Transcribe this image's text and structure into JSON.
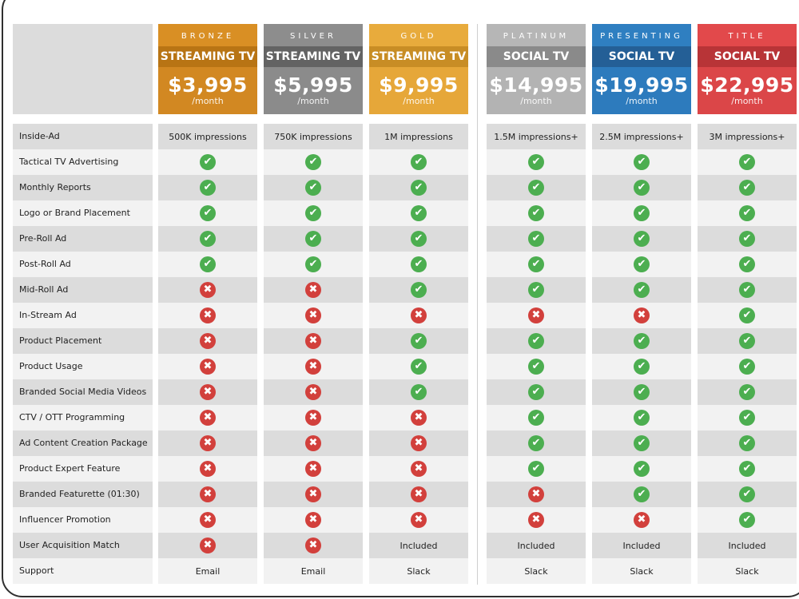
{
  "plans": [
    {
      "tier": "BRONZE",
      "product": "STREAMING TV",
      "price": "$3,995",
      "period": "/month",
      "color_top": "#d98f24",
      "color_mid": "#b87414",
      "color_body": "#d28822"
    },
    {
      "tier": "SILVER",
      "product": "STREAMING TV",
      "price": "$5,995",
      "period": "/month",
      "color_top": "#8d8d8d",
      "color_mid": "#636363",
      "color_body": "#8b8b8b"
    },
    {
      "tier": "GOLD",
      "product": "STREAMING TV",
      "price": "$9,995",
      "period": "/month",
      "color_top": "#e8ab3c",
      "color_mid": "#c88d25",
      "color_body": "#e6a739"
    },
    {
      "tier": "PLATINUM",
      "product": "SOCIAL TV",
      "price": "$14,995",
      "period": "/month",
      "color_top": "#b6b6b6",
      "color_mid": "#8a8a8a",
      "color_body": "#b3b3b3"
    },
    {
      "tier": "PRESENTING",
      "product": "SOCIAL TV",
      "price": "$19,995",
      "period": "/month",
      "color_top": "#2f7fc1",
      "color_mid": "#245f96",
      "color_body": "#2d7bbd"
    },
    {
      "tier": "TITLE",
      "product": "SOCIAL TV",
      "price": "$22,995",
      "period": "/month",
      "color_top": "#e2494b",
      "color_mid": "#b83437",
      "color_body": "#db4648"
    }
  ],
  "icons": {
    "yes": "check-circle-icon",
    "no": "x-circle-icon",
    "yes_color": "#4cae50",
    "no_color": "#d2403c"
  },
  "features": [
    {
      "label": "Inside-Ad",
      "values": [
        "500K impressions",
        "750K impressions",
        "1M impressions",
        "1.5M impressions+",
        "2.5M impressions+",
        "3M impressions+"
      ]
    },
    {
      "label": "Tactical TV Advertising",
      "values": [
        "yes",
        "yes",
        "yes",
        "yes",
        "yes",
        "yes"
      ]
    },
    {
      "label": "Monthly Reports",
      "values": [
        "yes",
        "yes",
        "yes",
        "yes",
        "yes",
        "yes"
      ]
    },
    {
      "label": "Logo or Brand Placement",
      "values": [
        "yes",
        "yes",
        "yes",
        "yes",
        "yes",
        "yes"
      ]
    },
    {
      "label": "Pre-Roll Ad",
      "values": [
        "yes",
        "yes",
        "yes",
        "yes",
        "yes",
        "yes"
      ]
    },
    {
      "label": "Post-Roll Ad",
      "values": [
        "yes",
        "yes",
        "yes",
        "yes",
        "yes",
        "yes"
      ]
    },
    {
      "label": "Mid-Roll Ad",
      "values": [
        "no",
        "no",
        "yes",
        "yes",
        "yes",
        "yes"
      ]
    },
    {
      "label": "In-Stream Ad",
      "values": [
        "no",
        "no",
        "no",
        "no",
        "no",
        "yes"
      ]
    },
    {
      "label": "Product Placement",
      "values": [
        "no",
        "no",
        "yes",
        "yes",
        "yes",
        "yes"
      ]
    },
    {
      "label": "Product Usage",
      "values": [
        "no",
        "no",
        "yes",
        "yes",
        "yes",
        "yes"
      ]
    },
    {
      "label": "Branded Social Media Videos",
      "values": [
        "no",
        "no",
        "yes",
        "yes",
        "yes",
        "yes"
      ]
    },
    {
      "label": "CTV / OTT Programming",
      "values": [
        "no",
        "no",
        "no",
        "yes",
        "yes",
        "yes"
      ]
    },
    {
      "label": "Ad Content Creation Package",
      "values": [
        "no",
        "no",
        "no",
        "yes",
        "yes",
        "yes"
      ]
    },
    {
      "label": "Product Expert Feature",
      "values": [
        "no",
        "no",
        "no",
        "yes",
        "yes",
        "yes"
      ]
    },
    {
      "label": "Branded Featurette (01:30)",
      "values": [
        "no",
        "no",
        "no",
        "no",
        "yes",
        "yes"
      ]
    },
    {
      "label": "Influencer Promotion",
      "values": [
        "no",
        "no",
        "no",
        "no",
        "no",
        "yes"
      ]
    },
    {
      "label": "User Acquisition Match",
      "values": [
        "no",
        "no",
        "Included",
        "Included",
        "Included",
        "Included"
      ]
    },
    {
      "label": "Support",
      "values": [
        "Email",
        "Email",
        "Slack",
        "Slack",
        "Slack",
        "Slack"
      ]
    }
  ]
}
